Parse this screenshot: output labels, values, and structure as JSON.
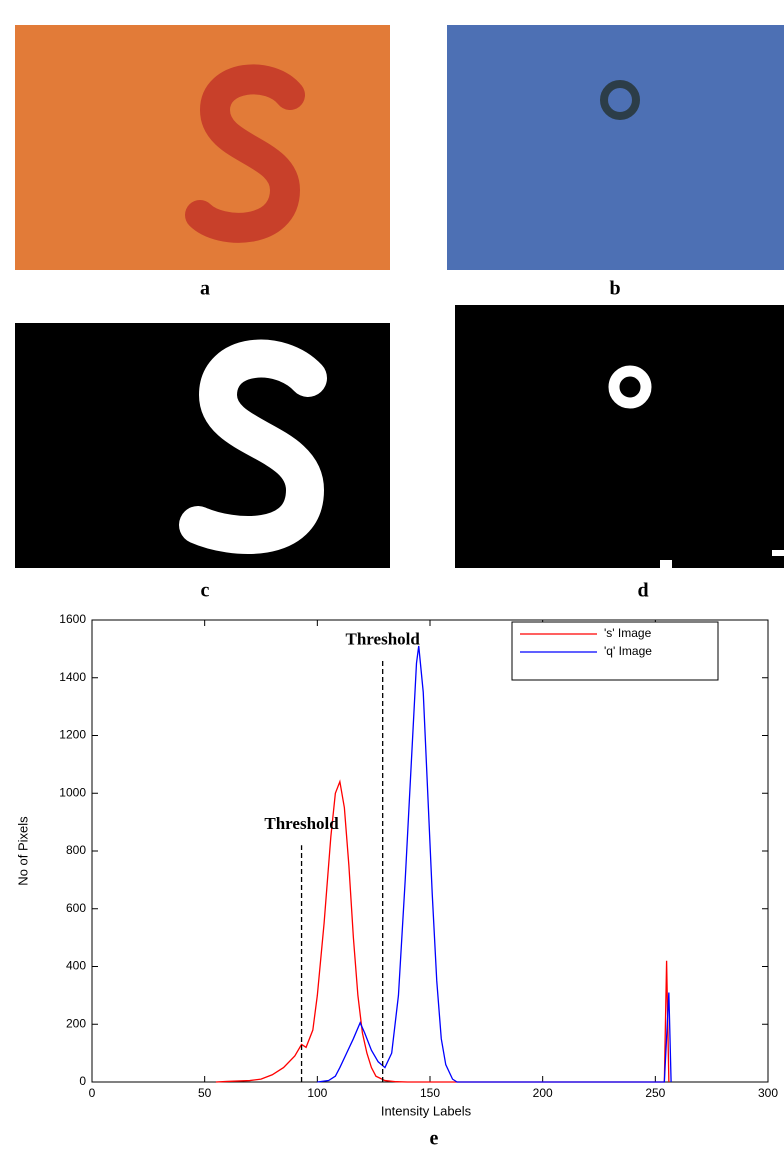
{
  "panels": [
    {
      "label": "a"
    },
    {
      "label": "b"
    },
    {
      "label": "c"
    },
    {
      "label": "d"
    }
  ],
  "chart_data": {
    "type": "line",
    "caption": "e",
    "xlabel": "Intensity Labels",
    "ylabel": "No of Pixels",
    "xlim": [
      0,
      300
    ],
    "ylim": [
      0,
      1600
    ],
    "xticks": [
      0,
      50,
      100,
      150,
      200,
      250,
      300
    ],
    "yticks": [
      0,
      200,
      400,
      600,
      800,
      1000,
      1200,
      1400,
      1600
    ],
    "legend": "upper right",
    "series": [
      {
        "name": "'s' Image",
        "color": "#ff0000",
        "x": [
          55,
          60,
          70,
          75,
          80,
          85,
          90,
          93,
          95,
          98,
          100,
          103,
          106,
          108,
          110,
          112,
          114,
          116,
          118,
          120,
          122,
          124,
          126,
          130,
          135,
          140,
          254,
          255,
          256
        ],
        "values": [
          0,
          2,
          5,
          10,
          25,
          50,
          90,
          130,
          120,
          180,
          300,
          550,
          850,
          1000,
          1040,
          950,
          750,
          500,
          300,
          170,
          100,
          50,
          20,
          5,
          1,
          0,
          0,
          420,
          0
        ]
      },
      {
        "name": "'q' Image",
        "color": "#0000ff",
        "x": [
          100,
          105,
          108,
          110,
          113,
          116,
          119,
          121,
          124,
          127,
          130,
          133,
          136,
          139,
          142,
          144,
          145,
          147,
          149,
          151,
          153,
          155,
          157,
          160,
          162,
          254,
          256,
          257
        ],
        "values": [
          0,
          5,
          20,
          50,
          100,
          150,
          205,
          170,
          110,
          70,
          50,
          100,
          300,
          700,
          1150,
          1450,
          1510,
          1350,
          1000,
          650,
          350,
          150,
          60,
          10,
          0,
          0,
          310,
          0
        ]
      }
    ],
    "annotations": [
      {
        "text": "Threshold",
        "x": 93,
        "y": 820
      },
      {
        "text": "Threshold",
        "x": 129,
        "y": 1460
      }
    ]
  }
}
